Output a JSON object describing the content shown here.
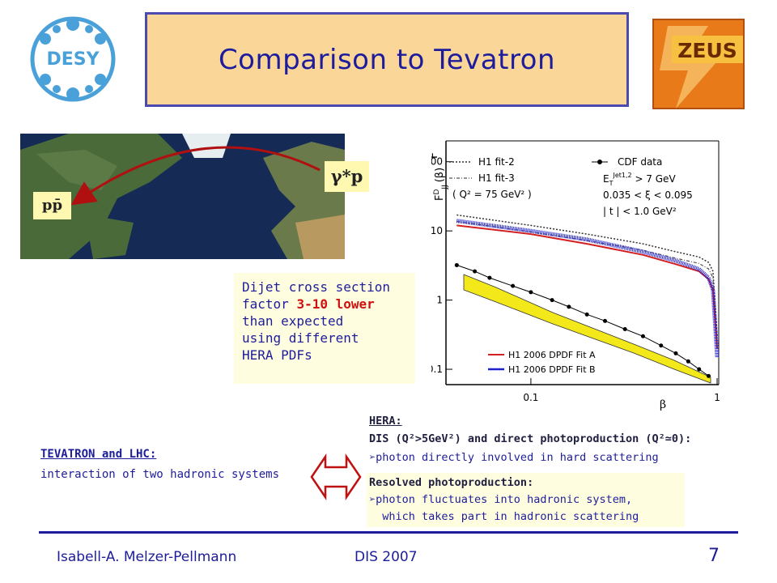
{
  "title": "Comparison to Tevatron",
  "logos": {
    "desy": "DESY",
    "zeus": "ZEUS"
  },
  "map": {
    "label_left": "pp̄",
    "label_right": "γ*p"
  },
  "textbox": {
    "line1": "Dijet cross section",
    "line2_prefix": "factor ",
    "line2_highlight": "3-10 lower",
    "line3": "than expected",
    "line4": "using different",
    "line5": "HERA PDFs"
  },
  "plot": {
    "ylabel": "F",
    "ylabel_sup": "D",
    "ylabel_sub": "JJ",
    "ylabel_arg": "(β)",
    "xlabel": "β",
    "yticks": [
      "100",
      "10",
      "1",
      "0.1"
    ],
    "xticks": [
      "0.1",
      "1"
    ],
    "legend_left": [
      "H1 fit-2",
      "H1 fit-3",
      "( Q² = 75 GeV² )"
    ],
    "legend_right": [
      "CDF data",
      "E",
      "0.035 < ξ < 0.095",
      "| t | < 1.0 GeV²"
    ],
    "et_sup": "Jet1,2",
    "et_sub": "T",
    "et_rest": " > 7 GeV",
    "legend_fits": [
      "H1 2006 DPDF Fit A",
      "H1 2006 DPDF Fit B"
    ]
  },
  "chart_data": {
    "type": "line",
    "xscale": "log",
    "yscale": "log",
    "xlim": [
      0.035,
      1.02
    ],
    "ylim": [
      0.06,
      200
    ],
    "xlabel": "β",
    "ylabel": "F^D_JJ (β)",
    "series": [
      {
        "name": "CDF data",
        "x": [
          0.04,
          0.05,
          0.06,
          0.08,
          0.1,
          0.13,
          0.16,
          0.2,
          0.25,
          0.32,
          0.4,
          0.5,
          0.6,
          0.7,
          0.8,
          0.9
        ],
        "y": [
          3.2,
          2.6,
          2.1,
          1.6,
          1.3,
          1.0,
          0.8,
          0.62,
          0.5,
          0.38,
          0.3,
          0.22,
          0.17,
          0.13,
          0.1,
          0.08
        ]
      },
      {
        "name": "H1 fit-2",
        "x": [
          0.04,
          0.1,
          0.2,
          0.4,
          0.6,
          0.8,
          0.9,
          0.95,
          1.0
        ],
        "y": [
          17,
          12,
          9,
          6.5,
          5,
          4.2,
          3.5,
          2.6,
          0.3
        ]
      },
      {
        "name": "H1 2006 DPDF Fit A",
        "x": [
          0.04,
          0.1,
          0.2,
          0.4,
          0.6,
          0.8,
          0.9,
          0.95,
          1.0
        ],
        "y": [
          12,
          9,
          6.5,
          4.5,
          3.3,
          2.6,
          2.0,
          1.4,
          0.2
        ]
      },
      {
        "name": "H1 2006 DPDF Fit B",
        "x": [
          0.04,
          0.1,
          0.2,
          0.4,
          0.6,
          0.8,
          0.9,
          0.95,
          1.0
        ],
        "y": [
          14,
          10,
          7.5,
          5,
          3.7,
          2.8,
          2.1,
          1.4,
          0.15
        ]
      }
    ]
  },
  "hera": {
    "heading": "HERA:",
    "line1": "DIS (Q²>5GeV²) and direct photoproduction (Q²≃0):",
    "line2": "➢photon directly involved in hard scattering",
    "resolved_heading": "Resolved photoproduction:",
    "resolved1": "➢photon fluctuates into hadronic system,",
    "resolved2": "  which takes part in hadronic scattering"
  },
  "tevatron": {
    "heading": "TEVATRON and LHC:",
    "desc": "interaction of two hadronic systems"
  },
  "footer": {
    "author": "Isabell-A. Melzer-Pellmann",
    "conference": "DIS 2007",
    "page": "7"
  }
}
